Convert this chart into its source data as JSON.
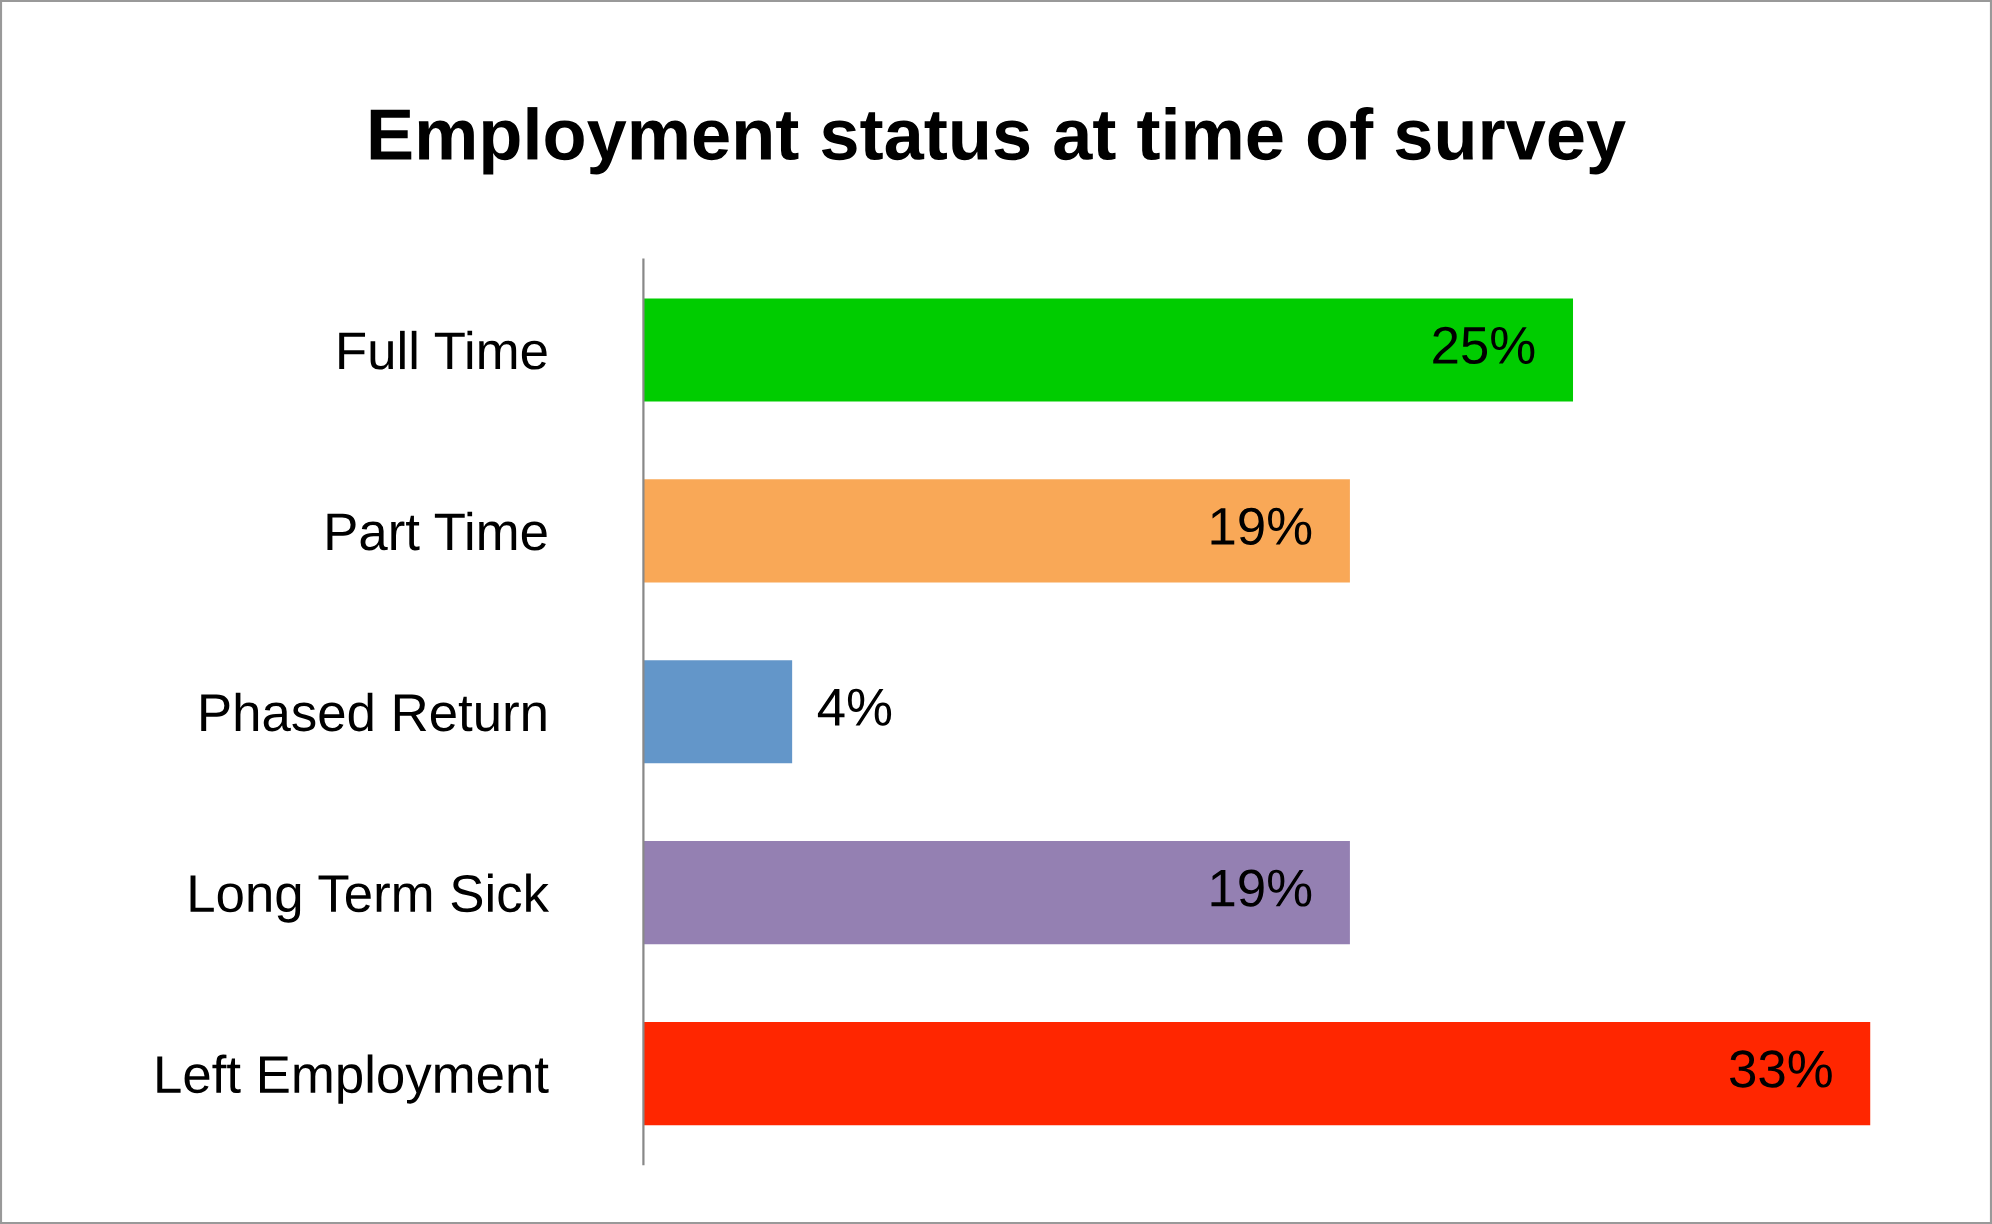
{
  "chart_data": {
    "type": "bar",
    "orientation": "horizontal",
    "title": "Employment status at time of survey",
    "categories": [
      "Full Time",
      "Part Time",
      "Phased Return",
      "Long Term Sick",
      "Left Employment"
    ],
    "values": [
      25,
      19,
      4,
      19,
      33
    ],
    "colors": [
      "#00cc00",
      "#f9a857",
      "#6396c9",
      "#9480b2",
      "#ff2600"
    ],
    "value_labels": [
      "25%",
      "19%",
      "4%",
      "19%",
      "33%"
    ],
    "grid": false,
    "legend": false
  }
}
